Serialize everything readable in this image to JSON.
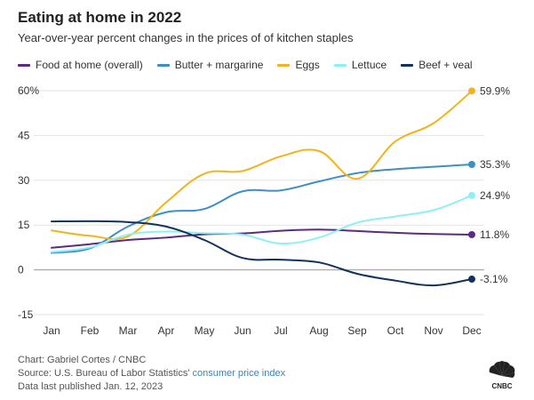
{
  "header": {
    "title": "Eating at home in 2022",
    "subtitle": "Year-over-year percent changes in the prices of of kitchen staples"
  },
  "footer": {
    "chart_credit": "Chart: Gabriel Cortes / CNBC",
    "source_prefix": "Source: U.S. Bureau of Labor Statistics' ",
    "source_link": "consumer price index",
    "published": "Data last published Jan. 12, 2023",
    "logo_text": "CNBC"
  },
  "chart_data": {
    "type": "line",
    "title": "Eating at home in 2022",
    "subtitle": "Year-over-year percent changes in the prices of of kitchen staples",
    "xlabel": "",
    "ylabel": "",
    "categories": [
      "Jan",
      "Feb",
      "Mar",
      "Apr",
      "May",
      "Jun",
      "Jul",
      "Aug",
      "Sep",
      "Oct",
      "Nov",
      "Dec"
    ],
    "ylim": [
      -15,
      60
    ],
    "yticks": [
      -15,
      0,
      15,
      30,
      45,
      60
    ],
    "ytick_labels": [
      "-15",
      "0",
      "15",
      "30",
      "45",
      "60%"
    ],
    "grid": true,
    "legend_position": "top",
    "series": [
      {
        "name": "Food at home (overall)",
        "color": "#5b2a86",
        "values": [
          7.4,
          8.6,
          10.0,
          10.8,
          11.9,
          12.2,
          13.1,
          13.5,
          13.0,
          12.4,
          12.0,
          11.8
        ],
        "end_label": "11.8%"
      },
      {
        "name": "Butter + margarine",
        "color": "#3d8fc4",
        "values": [
          5.7,
          7.2,
          14.5,
          19.3,
          20.4,
          26.3,
          26.6,
          29.6,
          32.4,
          33.7,
          34.5,
          35.3
        ],
        "end_label": "35.3%"
      },
      {
        "name": "Eggs",
        "color": "#f0b51e",
        "values": [
          13.2,
          11.4,
          11.2,
          22.6,
          32.2,
          33.1,
          38.0,
          39.8,
          30.5,
          43.0,
          49.1,
          59.9
        ],
        "end_label": "59.9%"
      },
      {
        "name": "Lettuce",
        "color": "#8ef0f5",
        "values": [
          6.0,
          7.5,
          11.8,
          12.8,
          12.3,
          11.8,
          8.8,
          10.8,
          15.8,
          17.9,
          20.0,
          24.9
        ],
        "end_label": "24.9%"
      },
      {
        "name": "Beef + veal",
        "color": "#12325c",
        "values": [
          16.2,
          16.3,
          16.0,
          14.5,
          10.0,
          4.0,
          3.4,
          2.5,
          -1.3,
          -3.6,
          -5.2,
          -3.1
        ],
        "end_label": "-3.1%"
      }
    ]
  }
}
